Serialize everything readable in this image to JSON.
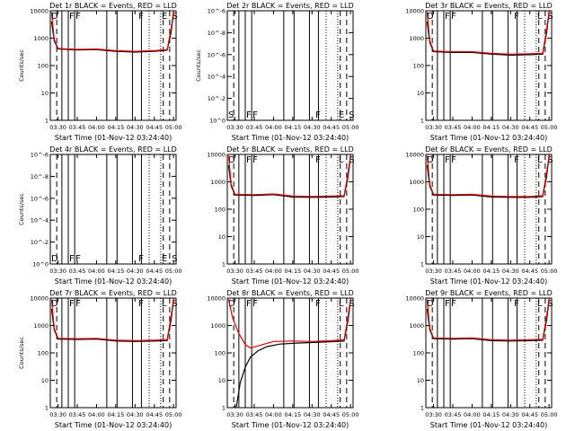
{
  "chart_data": [
    {
      "type": "line",
      "title": "Det 1r BLACK = Events, RED = LLD",
      "xlabel": "Start Time (01-Nov-12 03:24:40)",
      "ylabel": "Counts/sec",
      "scale": "log",
      "ylim": [
        1,
        10000
      ],
      "yticklabels": [
        "1",
        "10",
        "100",
        "1000",
        "10000"
      ],
      "x_ticks": [
        "03:30",
        "03:45",
        "04:00",
        "04:15",
        "04:30",
        "04:45",
        "05:00"
      ],
      "flags": [
        {
          "label": "D",
          "x": "03:24"
        },
        {
          "label": "F",
          "x": "03:38"
        },
        {
          "label": "F",
          "x": "03:43"
        },
        {
          "label": "F",
          "x": "04:32"
        },
        {
          "label": "E",
          "x": "04:50"
        },
        {
          "label": "S",
          "x": "04:58"
        }
      ],
      "series": [
        {
          "color": "#000000",
          "x": [
            "03:25",
            "03:27",
            "03:30",
            "03:45",
            "04:00",
            "04:15",
            "04:30",
            "04:45",
            "04:55",
            "04:58",
            "05:00"
          ],
          "values": [
            4000,
            800,
            400,
            370,
            380,
            330,
            310,
            330,
            360,
            1500,
            8000
          ]
        },
        {
          "color": "#e00000",
          "x": [
            "03:25",
            "03:27",
            "03:30",
            "03:45",
            "04:00",
            "04:15",
            "04:30",
            "04:45",
            "04:55",
            "04:58",
            "05:00"
          ],
          "values": [
            9000,
            900,
            420,
            390,
            400,
            350,
            330,
            350,
            380,
            2000,
            9000
          ]
        }
      ]
    },
    {
      "type": "line",
      "title": "Det 2r BLACK = Events, RED = LLD",
      "xlabel": "Start Time (01-Nov-12 03:24:40)",
      "ylabel": "Counts/sec",
      "scale": "log",
      "ylim": [
        1,
        1000000
      ],
      "yticklabels": [
        "10^0",
        "10^-2",
        "10^-4",
        "10^-6",
        "10^-8",
        "10^-6"
      ],
      "x_ticks": [
        "03:30",
        "03:45",
        "04:00",
        "04:15",
        "04:30",
        "04:45",
        "05:00"
      ],
      "flags": [
        {
          "label": "S",
          "x": "03:24"
        },
        {
          "label": "F",
          "x": "03:38"
        },
        {
          "label": "F",
          "x": "03:43"
        },
        {
          "label": "F",
          "x": "04:32"
        },
        {
          "label": "E",
          "x": "04:50"
        },
        {
          "label": "S",
          "x": "04:58"
        }
      ],
      "series": []
    },
    {
      "type": "line",
      "title": "Det 3r BLACK = Events, RED = LLD",
      "xlabel": "Start Time (01-Nov-12 03:24:40)",
      "ylabel": "",
      "scale": "log",
      "ylim": [
        1,
        10000
      ],
      "yticklabels": [
        "1",
        "10",
        "100",
        "1000",
        "10000"
      ],
      "x_ticks": [
        "03:30",
        "03:45",
        "04:00",
        "04:15",
        "04:30",
        "04:45",
        "05:00"
      ],
      "flags": [
        {
          "label": "D",
          "x": "03:24"
        },
        {
          "label": "F",
          "x": "03:38"
        },
        {
          "label": "F",
          "x": "03:43"
        },
        {
          "label": "F",
          "x": "04:32"
        },
        {
          "label": "L",
          "x": "04:50"
        },
        {
          "label": "S",
          "x": "04:58"
        }
      ],
      "series": [
        {
          "color": "#000000",
          "x": [
            "03:25",
            "03:27",
            "03:30",
            "03:45",
            "04:00",
            "04:15",
            "04:30",
            "04:45",
            "04:55",
            "04:58",
            "05:00"
          ],
          "values": [
            4000,
            700,
            320,
            300,
            300,
            260,
            240,
            250,
            260,
            1500,
            8000
          ]
        },
        {
          "color": "#e00000",
          "x": [
            "03:25",
            "03:27",
            "03:30",
            "03:45",
            "04:00",
            "04:15",
            "04:30",
            "04:45",
            "04:55",
            "04:58",
            "05:00"
          ],
          "values": [
            9000,
            800,
            340,
            320,
            320,
            280,
            260,
            270,
            280,
            2000,
            9000
          ]
        }
      ]
    },
    {
      "type": "line",
      "title": "Det 4r BLACK = Events, RED = LLD",
      "xlabel": "Start Time (01-Nov-12 03:24:40)",
      "ylabel": "Counts/sec",
      "scale": "log",
      "ylim": [
        1,
        1000000
      ],
      "yticklabels": [
        "10^0",
        "10^-2",
        "10^-4",
        "10^-6",
        "10^-8",
        "10^-6"
      ],
      "x_ticks": [
        "03:30",
        "03:45",
        "04:00",
        "04:15",
        "04:30",
        "04:45",
        "05:00"
      ],
      "flags": [
        {
          "label": "D",
          "x": "03:24"
        },
        {
          "label": "F",
          "x": "03:38"
        },
        {
          "label": "F",
          "x": "03:43"
        },
        {
          "label": "F",
          "x": "04:32"
        },
        {
          "label": "E",
          "x": "04:50"
        },
        {
          "label": "S",
          "x": "04:58"
        }
      ],
      "series": []
    },
    {
      "type": "line",
      "title": "Det 5r BLACK = Events, RED = LLD",
      "xlabel": "Start Time (01-Nov-12 03:24:40)",
      "ylabel": "",
      "scale": "log",
      "ylim": [
        1,
        10000
      ],
      "yticklabels": [
        "1",
        "10",
        "100",
        "1000",
        "10000"
      ],
      "x_ticks": [
        "03:30",
        "03:45",
        "04:00",
        "04:15",
        "04:30",
        "04:45",
        "05:00"
      ],
      "flags": [
        {
          "label": "D",
          "x": "03:24"
        },
        {
          "label": "F",
          "x": "03:38"
        },
        {
          "label": "F",
          "x": "03:43"
        },
        {
          "label": "F",
          "x": "04:32"
        },
        {
          "label": "L",
          "x": "04:50"
        },
        {
          "label": "S",
          "x": "04:58"
        }
      ],
      "series": [
        {
          "color": "#000000",
          "x": [
            "03:25",
            "03:27",
            "03:30",
            "03:45",
            "04:00",
            "04:15",
            "04:30",
            "04:45",
            "04:55",
            "04:58",
            "05:00"
          ],
          "values": [
            4000,
            700,
            330,
            320,
            340,
            280,
            270,
            280,
            290,
            1500,
            8000
          ]
        },
        {
          "color": "#e00000",
          "x": [
            "03:25",
            "03:27",
            "03:30",
            "03:45",
            "04:00",
            "04:15",
            "04:30",
            "04:45",
            "04:55",
            "04:58",
            "05:00"
          ],
          "values": [
            9000,
            800,
            350,
            340,
            360,
            300,
            290,
            300,
            310,
            2000,
            9000
          ]
        }
      ]
    },
    {
      "type": "line",
      "title": "Det 6r BLACK = Events, RED = LLD",
      "xlabel": "Start Time (01-Nov-12 03:24:40)",
      "ylabel": "",
      "scale": "log",
      "ylim": [
        1,
        10000
      ],
      "yticklabels": [
        "1",
        "10",
        "100",
        "1000",
        "10000"
      ],
      "x_ticks": [
        "03:30",
        "03:45",
        "04:00",
        "04:15",
        "04:30",
        "04:45",
        "05:00"
      ],
      "flags": [
        {
          "label": "D",
          "x": "03:24"
        },
        {
          "label": "F",
          "x": "03:38"
        },
        {
          "label": "F",
          "x": "03:43"
        },
        {
          "label": "F",
          "x": "04:32"
        },
        {
          "label": "L",
          "x": "04:50"
        },
        {
          "label": "S",
          "x": "04:58"
        }
      ],
      "series": [
        {
          "color": "#000000",
          "x": [
            "03:25",
            "03:27",
            "03:30",
            "03:45",
            "04:00",
            "04:15",
            "04:30",
            "04:45",
            "04:55",
            "04:58",
            "05:00"
          ],
          "values": [
            4000,
            700,
            330,
            320,
            330,
            280,
            270,
            270,
            290,
            1500,
            8000
          ]
        },
        {
          "color": "#e00000",
          "x": [
            "03:25",
            "03:27",
            "03:30",
            "03:45",
            "04:00",
            "04:15",
            "04:30",
            "04:45",
            "04:55",
            "04:58",
            "05:00"
          ],
          "values": [
            9000,
            800,
            350,
            340,
            350,
            300,
            290,
            290,
            310,
            2000,
            9000
          ]
        }
      ]
    },
    {
      "type": "line",
      "title": "Det 7r BLACK = Events, RED = LLD",
      "xlabel": "Start Time (01-Nov-12 03:24:40)",
      "ylabel": "Counts/sec",
      "scale": "log",
      "ylim": [
        1,
        10000
      ],
      "yticklabels": [
        "1",
        "10",
        "100",
        "1000",
        "10000"
      ],
      "x_ticks": [
        "03:30",
        "03:45",
        "04:00",
        "04:15",
        "04:30",
        "04:45",
        "05:00"
      ],
      "flags": [
        {
          "label": "D",
          "x": "03:24"
        },
        {
          "label": "F",
          "x": "03:38"
        },
        {
          "label": "F",
          "x": "03:43"
        },
        {
          "label": "F",
          "x": "04:32"
        },
        {
          "label": "L",
          "x": "04:50"
        },
        {
          "label": "S",
          "x": "04:58"
        }
      ],
      "series": [
        {
          "color": "#000000",
          "x": [
            "03:25",
            "03:27",
            "03:30",
            "03:45",
            "04:00",
            "04:15",
            "04:30",
            "04:45",
            "04:55",
            "04:58",
            "05:00"
          ],
          "values": [
            4000,
            700,
            320,
            310,
            320,
            270,
            260,
            270,
            280,
            1500,
            8000
          ]
        },
        {
          "color": "#e00000",
          "x": [
            "03:25",
            "03:27",
            "03:30",
            "03:45",
            "04:00",
            "04:15",
            "04:30",
            "04:45",
            "04:55",
            "04:58",
            "05:00"
          ],
          "values": [
            9000,
            800,
            340,
            330,
            340,
            290,
            280,
            290,
            300,
            2000,
            9000
          ]
        }
      ]
    },
    {
      "type": "line",
      "title": "Det 8r BLACK = Events, RED = LLD",
      "xlabel": "Start Time (01-Nov-12 03:24:40)",
      "ylabel": "",
      "scale": "log",
      "ylim": [
        1,
        10000
      ],
      "yticklabels": [
        "1",
        "10",
        "100",
        "1000",
        "10000"
      ],
      "x_ticks": [
        "03:30",
        "03:45",
        "04:00",
        "04:15",
        "04:30",
        "04:45",
        "05:00"
      ],
      "flags": [
        {
          "label": "D",
          "x": "03:24"
        },
        {
          "label": "F",
          "x": "03:38"
        },
        {
          "label": "F",
          "x": "03:43"
        },
        {
          "label": "F",
          "x": "04:32"
        },
        {
          "label": "L",
          "x": "04:50"
        },
        {
          "label": "S",
          "x": "04:58"
        }
      ],
      "series": [
        {
          "color": "#000000",
          "x": [
            "03:31",
            "03:34",
            "03:38",
            "03:42",
            "03:48",
            "03:55",
            "04:05",
            "04:20",
            "04:40",
            "04:55",
            "04:58",
            "05:00"
          ],
          "values": [
            1,
            8,
            30,
            70,
            120,
            170,
            210,
            230,
            250,
            270,
            1500,
            8000
          ]
        },
        {
          "color": "#e00000",
          "x": [
            "03:25",
            "03:28",
            "03:33",
            "03:38",
            "03:42",
            "03:48",
            "04:00",
            "04:15",
            "04:30",
            "04:45",
            "04:55",
            "04:58",
            "05:00"
          ],
          "values": [
            9000,
            2000,
            500,
            200,
            150,
            180,
            260,
            270,
            260,
            280,
            300,
            2000,
            9000
          ]
        }
      ]
    },
    {
      "type": "line",
      "title": "Det 9r BLACK = Events, RED = LLD",
      "xlabel": "Start Time (01-Nov-12 03:24:40)",
      "ylabel": "",
      "scale": "log",
      "ylim": [
        1,
        10000
      ],
      "yticklabels": [
        "1",
        "10",
        "100",
        "1000",
        "10000"
      ],
      "x_ticks": [
        "03:30",
        "03:45",
        "04:00",
        "04:15",
        "04:30",
        "04:45",
        "05:00"
      ],
      "flags": [
        {
          "label": "D",
          "x": "03:24"
        },
        {
          "label": "F",
          "x": "03:38"
        },
        {
          "label": "F",
          "x": "03:43"
        },
        {
          "label": "F",
          "x": "04:32"
        },
        {
          "label": "L",
          "x": "04:50"
        },
        {
          "label": "S",
          "x": "04:58"
        }
      ],
      "series": [
        {
          "color": "#000000",
          "x": [
            "03:25",
            "03:27",
            "03:30",
            "03:45",
            "04:00",
            "04:15",
            "04:30",
            "04:45",
            "04:55",
            "04:58",
            "05:00"
          ],
          "values": [
            4000,
            700,
            330,
            320,
            330,
            280,
            270,
            280,
            290,
            1500,
            8000
          ]
        },
        {
          "color": "#e00000",
          "x": [
            "03:25",
            "03:27",
            "03:30",
            "03:45",
            "04:00",
            "04:15",
            "04:30",
            "04:45",
            "04:55",
            "04:58",
            "05:00"
          ],
          "values": [
            9000,
            800,
            350,
            340,
            350,
            300,
            290,
            300,
            310,
            2000,
            9000
          ]
        }
      ]
    }
  ],
  "vlines": {
    "solid": [
      "03:33",
      "03:38",
      "03:43",
      "04:08",
      "04:16",
      "04:28",
      "04:35"
    ],
    "dotted": [
      "04:41",
      "04:50"
    ],
    "dashed": [
      "03:29",
      "04:52",
      "04:57"
    ]
  }
}
